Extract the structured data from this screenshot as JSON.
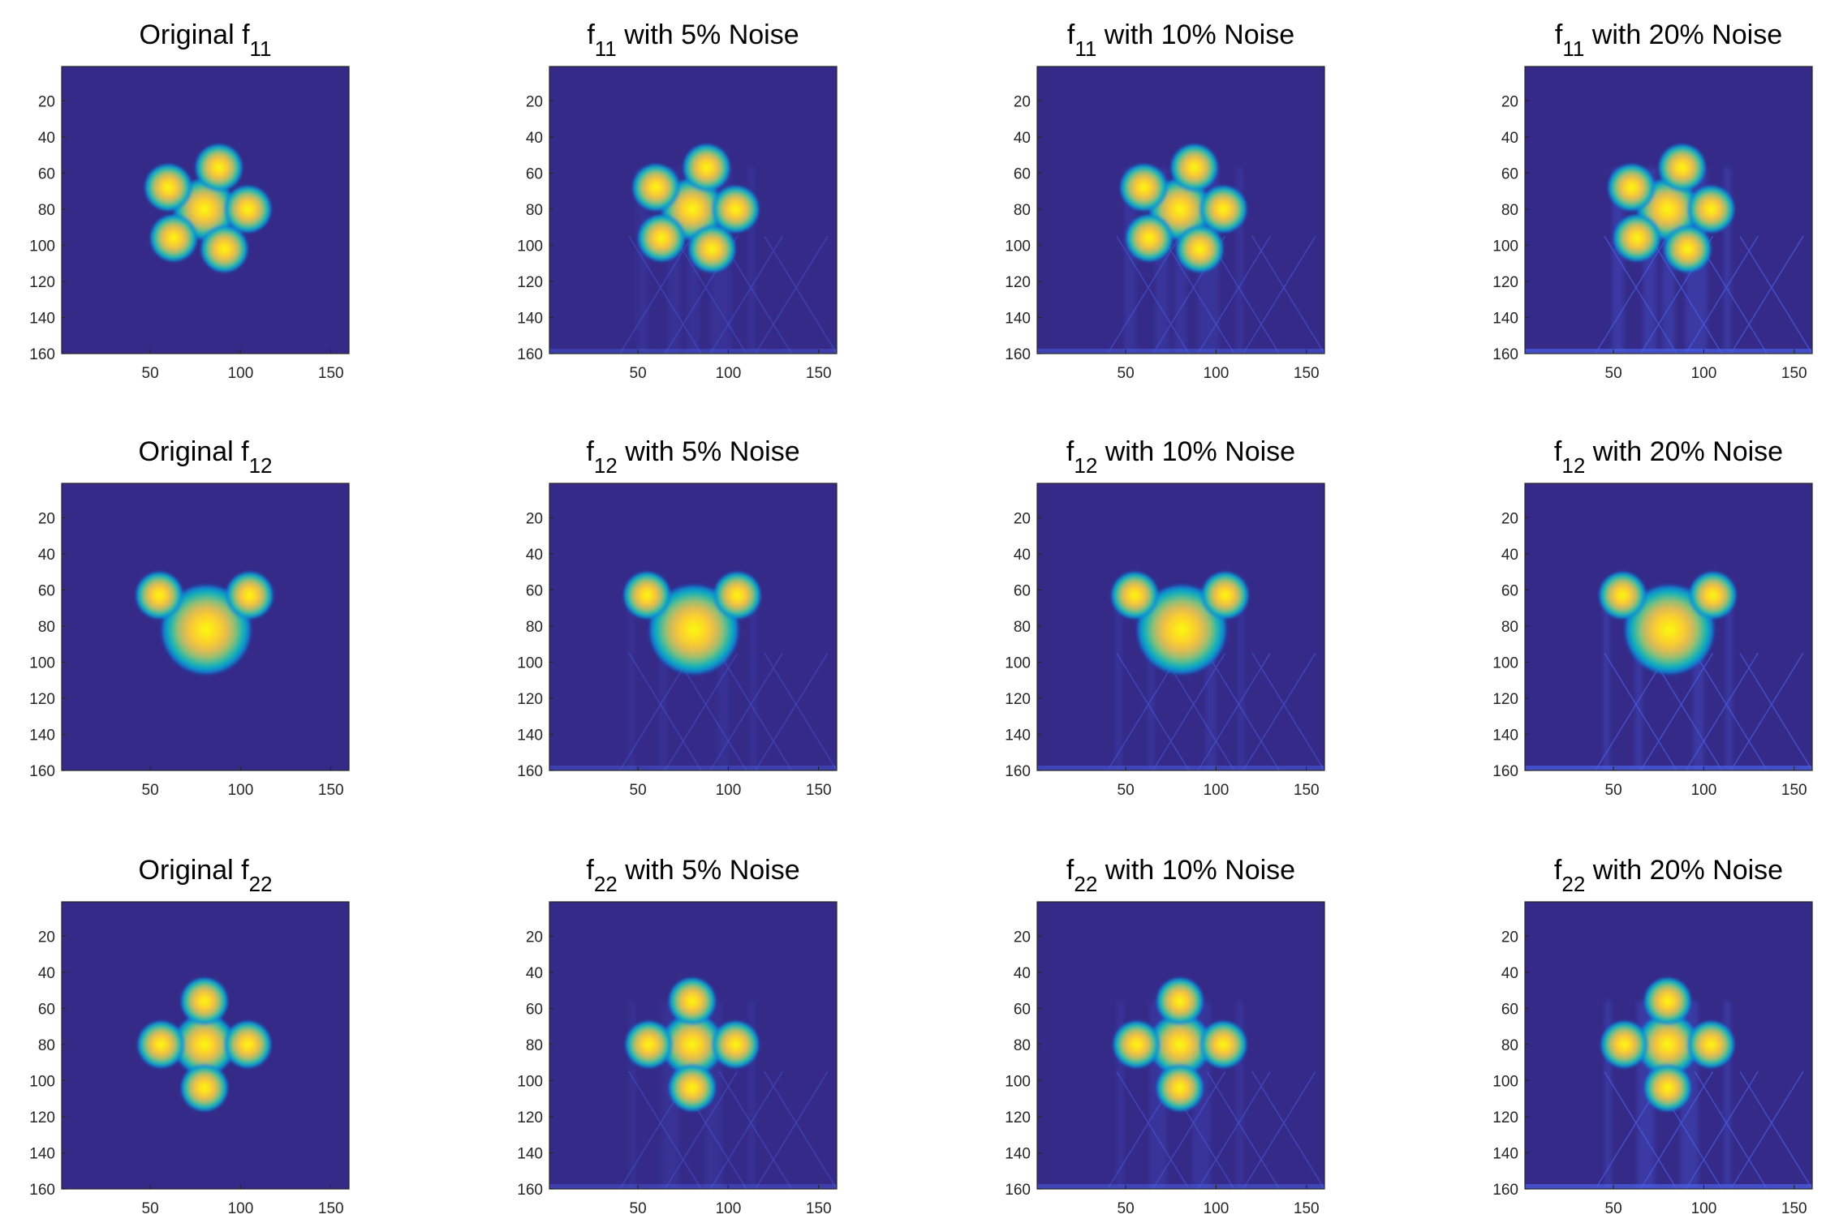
{
  "figure": {
    "background": "#ffffff",
    "colormap": [
      "#352a87",
      "#0363e1",
      "#1485d4",
      "#06a7c6",
      "#38b99e",
      "#92bf73",
      "#d9ba56",
      "#fcce2e",
      "#f9fb0e"
    ],
    "noise_streak_color": "#4a5fe6"
  },
  "chart_data": [
    {
      "type": "heatmap",
      "title_main": "Original f",
      "title_sub": "11",
      "title_rest": "",
      "noise": 0,
      "xlim": [
        1,
        160
      ],
      "ylim": [
        1,
        160
      ],
      "y_reversed": true,
      "xticks": [
        50,
        100,
        150
      ],
      "yticks": [
        20,
        40,
        60,
        80,
        100,
        120,
        140,
        160
      ],
      "blobs": [
        {
          "x": 80,
          "y": 80,
          "r": 13
        },
        {
          "x": 88,
          "y": 57,
          "r": 10
        },
        {
          "x": 60,
          "y": 68,
          "r": 10
        },
        {
          "x": 104,
          "y": 80,
          "r": 10
        },
        {
          "x": 63,
          "y": 96,
          "r": 10
        },
        {
          "x": 91,
          "y": 102,
          "r": 10
        }
      ]
    },
    {
      "type": "heatmap",
      "title_main": "f",
      "title_sub": "11",
      "title_rest": " with 5% Noise",
      "noise": 5,
      "xlim": [
        1,
        160
      ],
      "ylim": [
        1,
        160
      ],
      "y_reversed": true,
      "xticks": [
        50,
        100,
        150
      ],
      "yticks": [
        20,
        40,
        60,
        80,
        100,
        120,
        140,
        160
      ],
      "blobs": [
        {
          "x": 80,
          "y": 80,
          "r": 13
        },
        {
          "x": 88,
          "y": 57,
          "r": 10
        },
        {
          "x": 60,
          "y": 68,
          "r": 10
        },
        {
          "x": 104,
          "y": 80,
          "r": 10
        },
        {
          "x": 63,
          "y": 96,
          "r": 10
        },
        {
          "x": 91,
          "y": 102,
          "r": 10
        }
      ]
    },
    {
      "type": "heatmap",
      "title_main": "f",
      "title_sub": "11",
      "title_rest": " with 10% Noise",
      "noise": 10,
      "xlim": [
        1,
        160
      ],
      "ylim": [
        1,
        160
      ],
      "y_reversed": true,
      "xticks": [
        50,
        100,
        150
      ],
      "yticks": [
        20,
        40,
        60,
        80,
        100,
        120,
        140,
        160
      ],
      "blobs": [
        {
          "x": 80,
          "y": 80,
          "r": 13
        },
        {
          "x": 88,
          "y": 57,
          "r": 10
        },
        {
          "x": 60,
          "y": 68,
          "r": 10
        },
        {
          "x": 104,
          "y": 80,
          "r": 10
        },
        {
          "x": 63,
          "y": 96,
          "r": 10
        },
        {
          "x": 91,
          "y": 102,
          "r": 10
        }
      ]
    },
    {
      "type": "heatmap",
      "title_main": "f",
      "title_sub": "11",
      "title_rest": " with 20% Noise",
      "noise": 20,
      "xlim": [
        1,
        160
      ],
      "ylim": [
        1,
        160
      ],
      "y_reversed": true,
      "xticks": [
        50,
        100,
        150
      ],
      "yticks": [
        20,
        40,
        60,
        80,
        100,
        120,
        140,
        160
      ],
      "blobs": [
        {
          "x": 80,
          "y": 80,
          "r": 13
        },
        {
          "x": 88,
          "y": 57,
          "r": 10
        },
        {
          "x": 60,
          "y": 68,
          "r": 10
        },
        {
          "x": 104,
          "y": 80,
          "r": 10
        },
        {
          "x": 63,
          "y": 96,
          "r": 10
        },
        {
          "x": 91,
          "y": 102,
          "r": 10
        }
      ]
    },
    {
      "type": "heatmap",
      "title_main": "Original f",
      "title_sub": "12",
      "title_rest": "",
      "noise": 0,
      "xlim": [
        1,
        160
      ],
      "ylim": [
        1,
        160
      ],
      "y_reversed": true,
      "xticks": [
        50,
        100,
        150
      ],
      "yticks": [
        20,
        40,
        60,
        80,
        100,
        120,
        140,
        160
      ],
      "blobs": [
        {
          "x": 81,
          "y": 82,
          "r": 19
        },
        {
          "x": 55,
          "y": 63,
          "r": 10
        },
        {
          "x": 105,
          "y": 63,
          "r": 10
        }
      ]
    },
    {
      "type": "heatmap",
      "title_main": "f",
      "title_sub": "12",
      "title_rest": " with 5% Noise",
      "noise": 5,
      "xlim": [
        1,
        160
      ],
      "ylim": [
        1,
        160
      ],
      "y_reversed": true,
      "xticks": [
        50,
        100,
        150
      ],
      "yticks": [
        20,
        40,
        60,
        80,
        100,
        120,
        140,
        160
      ],
      "blobs": [
        {
          "x": 81,
          "y": 82,
          "r": 19
        },
        {
          "x": 55,
          "y": 63,
          "r": 10
        },
        {
          "x": 105,
          "y": 63,
          "r": 10
        }
      ]
    },
    {
      "type": "heatmap",
      "title_main": "f",
      "title_sub": "12",
      "title_rest": " with 10% Noise",
      "noise": 10,
      "xlim": [
        1,
        160
      ],
      "ylim": [
        1,
        160
      ],
      "y_reversed": true,
      "xticks": [
        50,
        100,
        150
      ],
      "yticks": [
        20,
        40,
        60,
        80,
        100,
        120,
        140,
        160
      ],
      "blobs": [
        {
          "x": 81,
          "y": 82,
          "r": 19
        },
        {
          "x": 55,
          "y": 63,
          "r": 10
        },
        {
          "x": 105,
          "y": 63,
          "r": 10
        }
      ]
    },
    {
      "type": "heatmap",
      "title_main": "f",
      "title_sub": "12",
      "title_rest": " with 20% Noise",
      "noise": 20,
      "xlim": [
        1,
        160
      ],
      "ylim": [
        1,
        160
      ],
      "y_reversed": true,
      "xticks": [
        50,
        100,
        150
      ],
      "yticks": [
        20,
        40,
        60,
        80,
        100,
        120,
        140,
        160
      ],
      "blobs": [
        {
          "x": 81,
          "y": 82,
          "r": 19
        },
        {
          "x": 55,
          "y": 63,
          "r": 10
        },
        {
          "x": 105,
          "y": 63,
          "r": 10
        }
      ]
    },
    {
      "type": "heatmap",
      "title_main": "Original f",
      "title_sub": "22",
      "title_rest": "",
      "noise": 0,
      "xlim": [
        1,
        160
      ],
      "ylim": [
        1,
        160
      ],
      "y_reversed": true,
      "xticks": [
        50,
        100,
        150
      ],
      "yticks": [
        20,
        40,
        60,
        80,
        100,
        120,
        140,
        160
      ],
      "blobs": [
        {
          "x": 80,
          "y": 80,
          "r": 13
        },
        {
          "x": 80,
          "y": 56,
          "r": 10
        },
        {
          "x": 56,
          "y": 80,
          "r": 10
        },
        {
          "x": 104,
          "y": 80,
          "r": 10
        },
        {
          "x": 80,
          "y": 104,
          "r": 10
        }
      ]
    },
    {
      "type": "heatmap",
      "title_main": "f",
      "title_sub": "22",
      "title_rest": " with 5% Noise",
      "noise": 5,
      "xlim": [
        1,
        160
      ],
      "ylim": [
        1,
        160
      ],
      "y_reversed": true,
      "xticks": [
        50,
        100,
        150
      ],
      "yticks": [
        20,
        40,
        60,
        80,
        100,
        120,
        140,
        160
      ],
      "blobs": [
        {
          "x": 80,
          "y": 80,
          "r": 13
        },
        {
          "x": 80,
          "y": 56,
          "r": 10
        },
        {
          "x": 56,
          "y": 80,
          "r": 10
        },
        {
          "x": 104,
          "y": 80,
          "r": 10
        },
        {
          "x": 80,
          "y": 104,
          "r": 10
        }
      ]
    },
    {
      "type": "heatmap",
      "title_main": "f",
      "title_sub": "22",
      "title_rest": " with 10% Noise",
      "noise": 10,
      "xlim": [
        1,
        160
      ],
      "ylim": [
        1,
        160
      ],
      "y_reversed": true,
      "xticks": [
        50,
        100,
        150
      ],
      "yticks": [
        20,
        40,
        60,
        80,
        100,
        120,
        140,
        160
      ],
      "blobs": [
        {
          "x": 80,
          "y": 80,
          "r": 13
        },
        {
          "x": 80,
          "y": 56,
          "r": 10
        },
        {
          "x": 56,
          "y": 80,
          "r": 10
        },
        {
          "x": 104,
          "y": 80,
          "r": 10
        },
        {
          "x": 80,
          "y": 104,
          "r": 10
        }
      ]
    },
    {
      "type": "heatmap",
      "title_main": "f",
      "title_sub": "22",
      "title_rest": " with 20% Noise",
      "noise": 20,
      "xlim": [
        1,
        160
      ],
      "ylim": [
        1,
        160
      ],
      "y_reversed": true,
      "xticks": [
        50,
        100,
        150
      ],
      "yticks": [
        20,
        40,
        60,
        80,
        100,
        120,
        140,
        160
      ],
      "blobs": [
        {
          "x": 80,
          "y": 80,
          "r": 13
        },
        {
          "x": 80,
          "y": 56,
          "r": 10
        },
        {
          "x": 56,
          "y": 80,
          "r": 10
        },
        {
          "x": 104,
          "y": 80,
          "r": 10
        },
        {
          "x": 80,
          "y": 104,
          "r": 10
        }
      ]
    }
  ]
}
